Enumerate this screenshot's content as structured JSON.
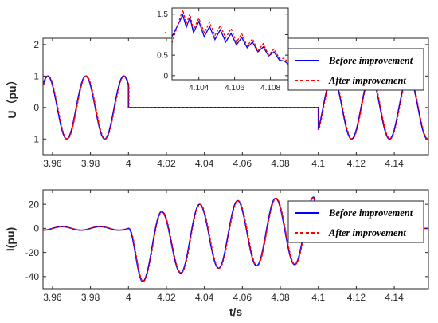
{
  "chart_data": [
    {
      "type": "line",
      "ylabel": "U（pu）",
      "xlim": [
        3.955,
        4.158
      ],
      "ylim": [
        -1.5,
        2.2
      ],
      "xticks": [
        3.96,
        3.98,
        4,
        4.02,
        4.04,
        4.06,
        4.08,
        4.1,
        4.12,
        4.14
      ],
      "xtick_labels": [
        "3.96",
        "3.98",
        "4",
        "4.02",
        "4.04",
        "4.06",
        "4.08",
        "4.1",
        "4.12",
        "4.14"
      ],
      "yticks": [
        -1,
        0,
        1,
        2
      ],
      "ytick_labels": [
        "-1",
        "0",
        "1",
        "2"
      ],
      "frequency_hz": 50,
      "series": [
        {
          "name": "Before improvement",
          "color": "#0000ff",
          "style": "solid",
          "segments": [
            {
              "x_range": [
                3.955,
                4.0
              ],
              "amplitude": 1.0,
              "phase_ref": 3.9775
            },
            {
              "x_range": [
                4.0,
                4.1
              ],
              "constant": 0.0
            },
            {
              "x_range": [
                4.1,
                4.158
              ],
              "amplitude": 1.0,
              "phase_ref": 4.1275
            }
          ]
        },
        {
          "name": "After improvement",
          "color": "#ff0000",
          "style": "dashed",
          "segments": [
            {
              "x_range": [
                3.955,
                4.0
              ],
              "amplitude": 1.0,
              "phase_ref": 3.9775
            },
            {
              "x_range": [
                4.0,
                4.1
              ],
              "constant": 0.0
            },
            {
              "x_range": [
                4.1,
                4.158
              ],
              "amplitude": 1.0,
              "phase_ref": 4.1275
            }
          ]
        }
      ],
      "legend": [
        "Before improvement",
        "After improvement"
      ],
      "legend_position": "right"
    },
    {
      "type": "line",
      "title": "inset",
      "xlim": [
        4.1025,
        4.109
      ],
      "ylim": [
        -0.1,
        1.65
      ],
      "xticks": [
        4.104,
        4.106,
        4.108
      ],
      "xtick_labels": [
        "4.104",
        "4.106",
        "4.108"
      ],
      "yticks": [
        0,
        0.5,
        1,
        1.5
      ],
      "ytick_labels": [
        "0",
        "0.5",
        "1",
        "1.5"
      ],
      "series": [
        {
          "name": "Before improvement",
          "color": "#0000ff",
          "points": [
            [
              4.1025,
              0.95
            ],
            [
              4.1029,
              1.3
            ],
            [
              4.1031,
              1.48
            ],
            [
              4.1033,
              1.18
            ],
            [
              4.1035,
              1.42
            ],
            [
              4.1037,
              1.05
            ],
            [
              4.104,
              1.32
            ],
            [
              4.1043,
              0.95
            ],
            [
              4.1046,
              1.2
            ],
            [
              4.1049,
              0.88
            ],
            [
              4.1052,
              1.12
            ],
            [
              4.1055,
              0.82
            ],
            [
              4.1058,
              1.03
            ],
            [
              4.1061,
              0.75
            ],
            [
              4.1064,
              0.93
            ],
            [
              4.1067,
              0.68
            ],
            [
              4.107,
              0.82
            ],
            [
              4.1073,
              0.58
            ],
            [
              4.1076,
              0.7
            ],
            [
              4.1079,
              0.48
            ],
            [
              4.1082,
              0.58
            ],
            [
              4.1085,
              0.38
            ],
            [
              4.1088,
              0.35
            ],
            [
              4.109,
              0.28
            ]
          ]
        },
        {
          "name": "After improvement",
          "color": "#ff0000",
          "points": [
            [
              4.1025,
              0.8
            ],
            [
              4.1029,
              1.35
            ],
            [
              4.1031,
              1.6
            ],
            [
              4.1033,
              1.28
            ],
            [
              4.1035,
              1.5
            ],
            [
              4.1037,
              1.12
            ],
            [
              4.104,
              1.4
            ],
            [
              4.1043,
              1.05
            ],
            [
              4.1046,
              1.3
            ],
            [
              4.1049,
              0.98
            ],
            [
              4.1052,
              1.22
            ],
            [
              4.1055,
              0.92
            ],
            [
              4.1058,
              1.15
            ],
            [
              4.1061,
              0.82
            ],
            [
              4.1064,
              1.02
            ],
            [
              4.1067,
              0.72
            ],
            [
              4.107,
              0.9
            ],
            [
              4.1073,
              0.6
            ],
            [
              4.1076,
              0.78
            ],
            [
              4.1079,
              0.5
            ],
            [
              4.1082,
              0.65
            ],
            [
              4.1085,
              0.42
            ],
            [
              4.1088,
              0.42
            ],
            [
              4.109,
              0.3
            ]
          ]
        }
      ]
    },
    {
      "type": "line",
      "xlabel": "t/s",
      "ylabel": "I(pu)",
      "xlim": [
        3.955,
        4.158
      ],
      "ylim": [
        -50,
        32
      ],
      "xticks": [
        3.96,
        3.98,
        4,
        4.02,
        4.04,
        4.06,
        4.08,
        4.1,
        4.12,
        4.14
      ],
      "xtick_labels": [
        "3.96",
        "3.98",
        "4",
        "4.02",
        "4.04",
        "4.06",
        "4.08",
        "4.1",
        "4.12",
        "4.14"
      ],
      "yticks": [
        -40,
        -20,
        0,
        20
      ],
      "ytick_labels": [
        "-40",
        "-20",
        "0",
        "20"
      ],
      "frequency_hz": 50,
      "series": [
        {
          "name": "Before improvement",
          "color": "#0000ff",
          "style": "solid",
          "prefault_amplitude": 1.5,
          "fault_start": 4.0,
          "fault_end": 4.1,
          "fault_dc_offset": -9.5,
          "fault_peaks": [
            [
              4.0075,
              -44
            ],
            [
              4.0175,
              14
            ],
            [
              4.0275,
              -37
            ],
            [
              4.0375,
              20
            ],
            [
              4.0475,
              -33
            ],
            [
              4.0575,
              23
            ],
            [
              4.0675,
              -31
            ],
            [
              4.0775,
              25
            ],
            [
              4.0875,
              -30
            ],
            [
              4.0975,
              26
            ]
          ],
          "postfault_value": 0
        },
        {
          "name": "After improvement",
          "color": "#ff0000",
          "style": "dashed",
          "prefault_amplitude": 1.5,
          "fault_start": 4.0,
          "fault_end": 4.1,
          "fault_dc_offset": -9.5,
          "fault_peaks": [
            [
              4.0075,
              -44
            ],
            [
              4.0175,
              14
            ],
            [
              4.0275,
              -37
            ],
            [
              4.0375,
              20
            ],
            [
              4.0475,
              -33
            ],
            [
              4.0575,
              23
            ],
            [
              4.0675,
              -31
            ],
            [
              4.0775,
              25
            ],
            [
              4.0875,
              -30
            ],
            [
              4.0975,
              26
            ]
          ],
          "postfault_value": 0
        }
      ],
      "legend": [
        "Before improvement",
        "After improvement"
      ],
      "legend_position": "top-right"
    }
  ]
}
